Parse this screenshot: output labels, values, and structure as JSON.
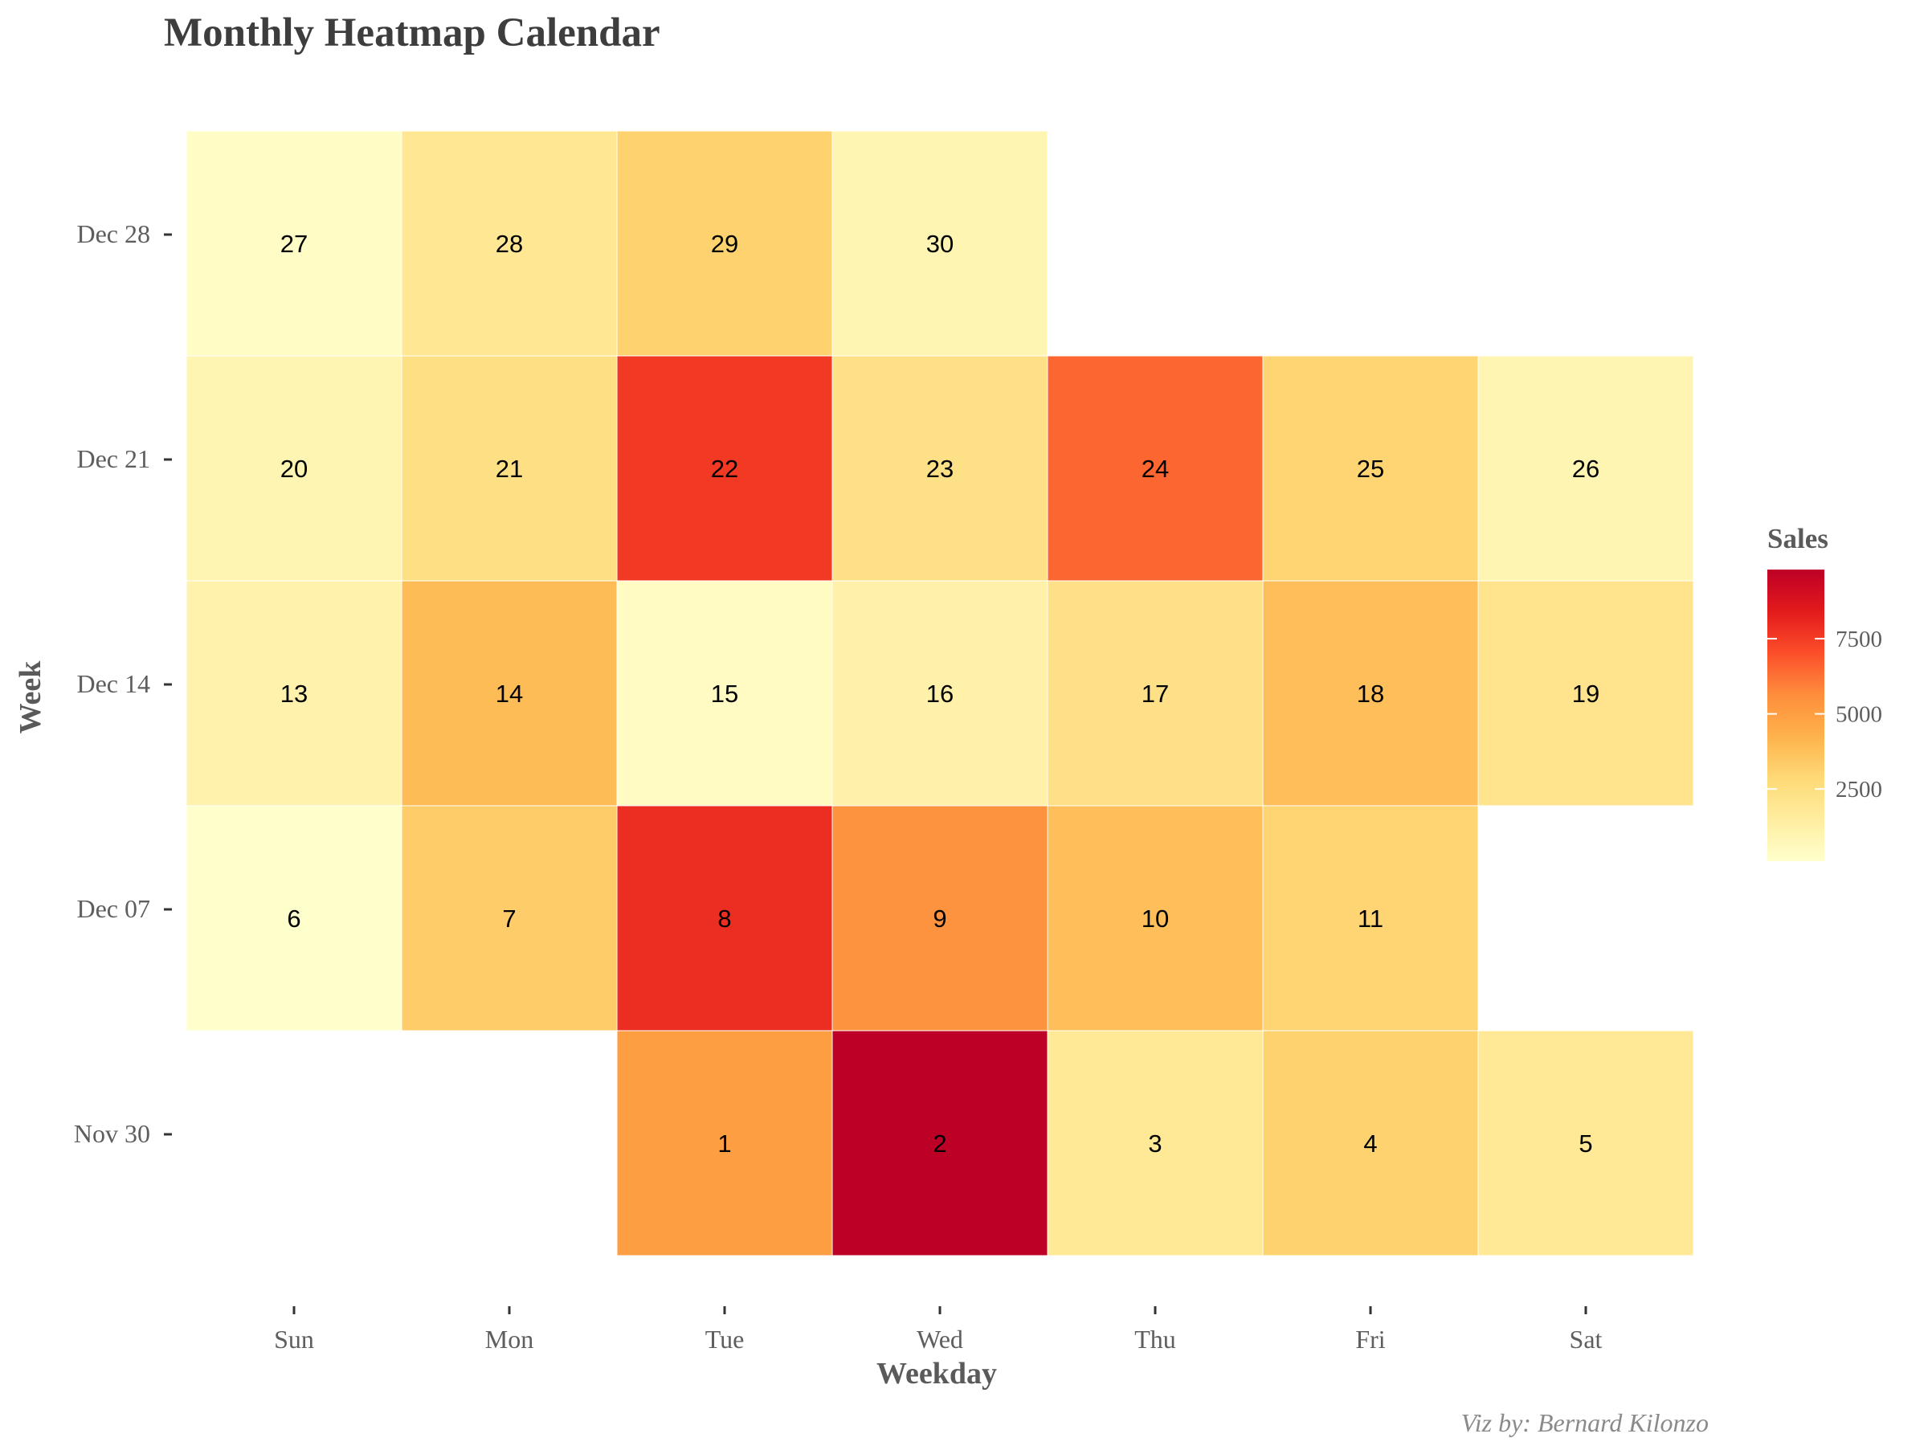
{
  "chart_data": {
    "type": "heatmap",
    "title": "Monthly Heatmap Calendar",
    "xlabel": "Weekday",
    "ylabel": "Week",
    "caption": "Viz by: Bernard Kilonzo",
    "weekdays": [
      "Sun",
      "Mon",
      "Tue",
      "Wed",
      "Thu",
      "Fri",
      "Sat"
    ],
    "weeks": [
      "Nov 30",
      "Dec 07",
      "Dec 14",
      "Dec 21",
      "Dec 28"
    ],
    "legend": {
      "title": "Sales",
      "ticks": [
        2500,
        5000,
        7500
      ],
      "range": [
        100,
        9800
      ],
      "colors": [
        "#ffffcc",
        "#ffeda0",
        "#fed976",
        "#feb24c",
        "#fd8d3c",
        "#fc4e2a",
        "#e31a1c",
        "#bd0026"
      ],
      "placement": "right"
    },
    "cells": [
      {
        "week": "Nov 30",
        "weekday": "Tue",
        "day": "1",
        "sales": 5000
      },
      {
        "week": "Nov 30",
        "weekday": "Wed",
        "day": "2",
        "sales": 9800
      },
      {
        "week": "Nov 30",
        "weekday": "Thu",
        "day": "3",
        "sales": 1800
      },
      {
        "week": "Nov 30",
        "weekday": "Fri",
        "day": "4",
        "sales": 3100
      },
      {
        "week": "Nov 30",
        "weekday": "Sat",
        "day": "5",
        "sales": 1800
      },
      {
        "week": "Dec 07",
        "weekday": "Sun",
        "day": "6",
        "sales": 100
      },
      {
        "week": "Dec 07",
        "weekday": "Mon",
        "day": "7",
        "sales": 3300
      },
      {
        "week": "Dec 07",
        "weekday": "Tue",
        "day": "8",
        "sales": 7900
      },
      {
        "week": "Dec 07",
        "weekday": "Wed",
        "day": "9",
        "sales": 5400
      },
      {
        "week": "Dec 07",
        "weekday": "Thu",
        "day": "10",
        "sales": 3800
      },
      {
        "week": "Dec 07",
        "weekday": "Fri",
        "day": "11",
        "sales": 3000
      },
      {
        "week": "Dec 14",
        "weekday": "Sun",
        "day": "13",
        "sales": 1100
      },
      {
        "week": "Dec 14",
        "weekday": "Mon",
        "day": "14",
        "sales": 3900
      },
      {
        "week": "Dec 14",
        "weekday": "Tue",
        "day": "15",
        "sales": 400
      },
      {
        "week": "Dec 14",
        "weekday": "Wed",
        "day": "16",
        "sales": 1200
      },
      {
        "week": "Dec 14",
        "weekday": "Thu",
        "day": "17",
        "sales": 2300
      },
      {
        "week": "Dec 14",
        "weekday": "Fri",
        "day": "18",
        "sales": 3800
      },
      {
        "week": "Dec 14",
        "weekday": "Sat",
        "day": "19",
        "sales": 2100
      },
      {
        "week": "Dec 21",
        "weekday": "Sun",
        "day": "20",
        "sales": 900
      },
      {
        "week": "Dec 21",
        "weekday": "Mon",
        "day": "21",
        "sales": 2400
      },
      {
        "week": "Dec 21",
        "weekday": "Tue",
        "day": "22",
        "sales": 7600
      },
      {
        "week": "Dec 21",
        "weekday": "Wed",
        "day": "23",
        "sales": 2300
      },
      {
        "week": "Dec 21",
        "weekday": "Thu",
        "day": "24",
        "sales": 6500
      },
      {
        "week": "Dec 21",
        "weekday": "Fri",
        "day": "25",
        "sales": 3000
      },
      {
        "week": "Dec 21",
        "weekday": "Sat",
        "day": "26",
        "sales": 900
      },
      {
        "week": "Dec 28",
        "weekday": "Sun",
        "day": "27",
        "sales": 300
      },
      {
        "week": "Dec 28",
        "weekday": "Mon",
        "day": "28",
        "sales": 1900
      },
      {
        "week": "Dec 28",
        "weekday": "Tue",
        "day": "29",
        "sales": 3100
      },
      {
        "week": "Dec 28",
        "weekday": "Wed",
        "day": "30",
        "sales": 900
      }
    ]
  }
}
